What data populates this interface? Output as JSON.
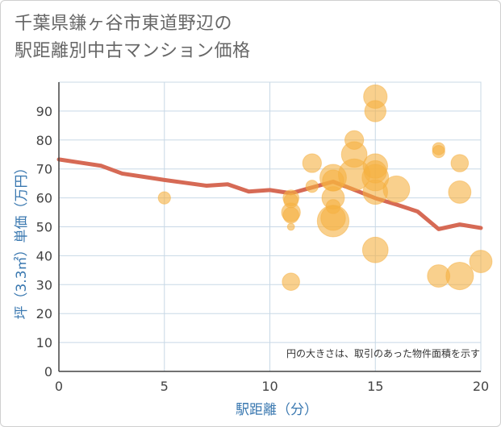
{
  "title_lines": [
    "千葉県鎌ヶ谷市東道野辺の",
    "駅距離別中古マンション価格"
  ],
  "note": "円の大きさは、取引のあった物件面積を示す",
  "colors": {
    "bubble": "#f5b041",
    "trend": "#d66a55",
    "grid": "#c8d8e6",
    "axis": "#444444",
    "label": "#3a78b0"
  },
  "chart_data": {
    "type": "scatter",
    "title": "千葉県鎌ヶ谷市東道野辺の 駅距離別中古マンション価格",
    "xlabel": "駅距離（分）",
    "ylabel": "坪（3.3㎡）単価（万円）",
    "xlim": [
      0,
      20
    ],
    "ylim": [
      0,
      100
    ],
    "x_ticks": [
      0,
      5,
      10,
      15,
      20
    ],
    "y_ticks": [
      0,
      10,
      20,
      30,
      40,
      50,
      60,
      70,
      80,
      90
    ],
    "grid": true,
    "bubbles": [
      {
        "x": 5,
        "y": 60,
        "size": 3
      },
      {
        "x": 11,
        "y": 60,
        "size": 5
      },
      {
        "x": 11,
        "y": 59,
        "size": 4
      },
      {
        "x": 11,
        "y": 55,
        "size": 7
      },
      {
        "x": 11,
        "y": 54,
        "size": 5
      },
      {
        "x": 11,
        "y": 50,
        "size": 1
      },
      {
        "x": 11,
        "y": 31,
        "size": 6
      },
      {
        "x": 12,
        "y": 72,
        "size": 7
      },
      {
        "x": 12,
        "y": 64,
        "size": 3
      },
      {
        "x": 13,
        "y": 67,
        "size": 14
      },
      {
        "x": 13,
        "y": 66,
        "size": 9
      },
      {
        "x": 13,
        "y": 60,
        "size": 10
      },
      {
        "x": 13,
        "y": 57,
        "size": 4
      },
      {
        "x": 13,
        "y": 53,
        "size": 12
      },
      {
        "x": 13,
        "y": 52,
        "size": 20
      },
      {
        "x": 14,
        "y": 80,
        "size": 7
      },
      {
        "x": 14,
        "y": 75,
        "size": 13
      },
      {
        "x": 14,
        "y": 68,
        "size": 20
      },
      {
        "x": 15,
        "y": 95,
        "size": 11
      },
      {
        "x": 15,
        "y": 90,
        "size": 9
      },
      {
        "x": 15,
        "y": 71,
        "size": 12
      },
      {
        "x": 15,
        "y": 69,
        "size": 10
      },
      {
        "x": 15,
        "y": 67,
        "size": 14
      },
      {
        "x": 15,
        "y": 62,
        "size": 12
      },
      {
        "x": 15,
        "y": 42,
        "size": 13
      },
      {
        "x": 16,
        "y": 63,
        "size": 14
      },
      {
        "x": 18,
        "y": 77,
        "size": 3
      },
      {
        "x": 18,
        "y": 76,
        "size": 3
      },
      {
        "x": 18,
        "y": 33,
        "size": 10
      },
      {
        "x": 19,
        "y": 72,
        "size": 6
      },
      {
        "x": 19,
        "y": 62,
        "size": 10
      },
      {
        "x": 19,
        "y": 33,
        "size": 15
      },
      {
        "x": 20,
        "y": 38,
        "size": 10
      }
    ],
    "trend": {
      "x": [
        0,
        1,
        2,
        3,
        4,
        5,
        6,
        7,
        8,
        9,
        10,
        11,
        12,
        13,
        14,
        15,
        16,
        17,
        18,
        19,
        20
      ],
      "y": [
        73.3,
        72.2,
        71.1,
        68.4,
        67.3,
        66.2,
        65.2,
        64.2,
        64.7,
        62.2,
        62.7,
        61.6,
        63.6,
        65.6,
        62.8,
        59.9,
        57.7,
        55.3,
        49.2,
        50.8,
        49.6
      ]
    }
  }
}
